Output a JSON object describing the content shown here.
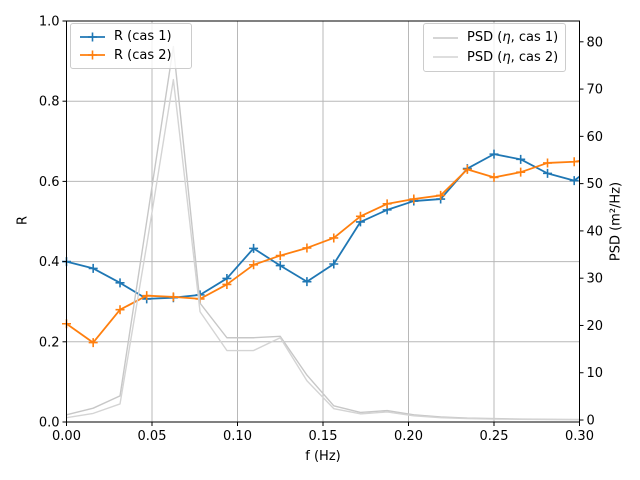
{
  "chart_data": {
    "type": "line",
    "title": "",
    "xlabel": "f (Hz)",
    "ylabel_left": "R",
    "ylabel_right": "PSD (m²/Hz)",
    "xlim": [
      0.0,
      0.3
    ],
    "ylim_left": [
      0.0,
      1.0
    ],
    "ylim_right": [
      -0.42,
      84.4
    ],
    "grid": true,
    "grid_color": "#b8b8b8",
    "spine_color": "#000000",
    "xticks": {
      "values": [
        0.0,
        0.05,
        0.1,
        0.15,
        0.2,
        0.25,
        0.3
      ],
      "labels": [
        "0.00",
        "0.05",
        "0.10",
        "0.15",
        "0.20",
        "0.25",
        "0.30"
      ]
    },
    "yticks_left": {
      "values": [
        0.0,
        0.2,
        0.4,
        0.6,
        0.8,
        1.0
      ],
      "labels": [
        "0.0",
        "0.2",
        "0.4",
        "0.6",
        "0.8",
        "1.0"
      ]
    },
    "yticks_right": {
      "values": [
        0,
        10,
        20,
        30,
        40,
        50,
        60,
        70,
        80
      ],
      "labels": [
        "0",
        "10",
        "20",
        "30",
        "40",
        "50",
        "60",
        "70",
        "80"
      ]
    },
    "x": [
      0.0,
      0.0156,
      0.0313,
      0.0469,
      0.0625,
      0.0781,
      0.0938,
      0.1094,
      0.125,
      0.1406,
      0.1563,
      0.1719,
      0.1875,
      0.2031,
      0.2188,
      0.2344,
      0.25,
      0.2656,
      0.2813,
      0.2969,
      0.3
    ],
    "series": [
      {
        "name": "R (cas 1)",
        "axis": "left",
        "color": "#1f77b4",
        "marker": "+",
        "values": [
          0.4,
          0.383,
          0.347,
          0.307,
          0.31,
          0.317,
          0.358,
          0.433,
          0.39,
          0.35,
          0.394,
          0.499,
          0.529,
          0.551,
          0.556,
          0.632,
          0.668,
          0.655,
          0.62,
          0.602,
          0.612
        ]
      },
      {
        "name": "R (cas 2)",
        "axis": "left",
        "color": "#ff7f0e",
        "marker": "+",
        "values": [
          0.245,
          0.198,
          0.28,
          0.315,
          0.312,
          0.307,
          0.343,
          0.392,
          0.415,
          0.434,
          0.459,
          0.513,
          0.544,
          0.556,
          0.565,
          0.63,
          0.61,
          0.623,
          0.646,
          0.649,
          0.651
        ]
      },
      {
        "name": "PSD (η, cas 1)",
        "axis": "right",
        "color": "#c7c7c7",
        "marker": null,
        "values": [
          1.1,
          2.5,
          5.1,
          42.0,
          79.0,
          24.7,
          17.4,
          17.4,
          17.7,
          9.5,
          3.0,
          1.6,
          2.0,
          1.1,
          0.65,
          0.4,
          0.3,
          0.2,
          0.15,
          0.1,
          0.1
        ]
      },
      {
        "name": "PSD (η, cas 2)",
        "axis": "right",
        "color": "#d4d4d4",
        "marker": null,
        "values": [
          0.5,
          1.4,
          3.4,
          37.0,
          72.0,
          22.9,
          14.7,
          14.7,
          17.4,
          8.3,
          2.4,
          1.3,
          1.7,
          0.9,
          0.5,
          0.3,
          0.2,
          0.15,
          0.1,
          0.08,
          0.08
        ]
      }
    ],
    "legends": [
      {
        "position": "upper-left",
        "series": [
          0,
          1
        ]
      },
      {
        "position": "upper-right",
        "series": [
          2,
          3
        ]
      }
    ]
  }
}
